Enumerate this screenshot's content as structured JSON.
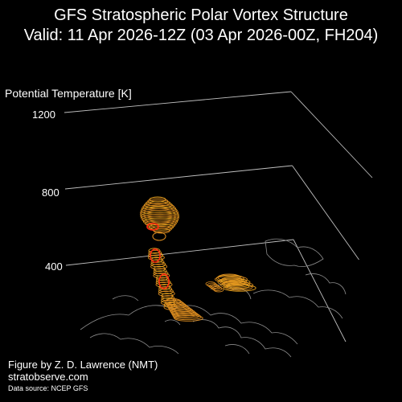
{
  "header": {
    "title_line1": "GFS Stratospheric Polar Vortex Structure",
    "title_line2": "Valid: 11 Apr 2026-12Z  (03 Apr 2026-00Z, FH204)"
  },
  "footer": {
    "credit": "Figure by Z. D. Lawrence (NMT)",
    "website": "stratobserve.com",
    "source": "Data source: NCEP GFS"
  },
  "colors": {
    "background": "#000000",
    "text": "#ffffff",
    "axes": "#bfbfbf",
    "coastline": "#8c8c8c",
    "vortex_outer": "#d98a1f",
    "vortex_mid": "#e8a21e",
    "vortex_inner": "#ff2a10"
  },
  "chart_data": {
    "type": "3d-isosurface",
    "zlabel": "Potential Temperature [K]",
    "z_ticks": [
      400,
      800,
      1200
    ],
    "zlim": [
      350,
      1200
    ],
    "grid": true,
    "structures": [
      {
        "level_low": 320,
        "level_high": 450,
        "shape": "lower lobes"
      },
      {
        "level_low": 450,
        "level_high": 650,
        "shape": "vertical column"
      },
      {
        "level_low": 650,
        "level_high": 850,
        "shape": "upper blob"
      }
    ]
  }
}
